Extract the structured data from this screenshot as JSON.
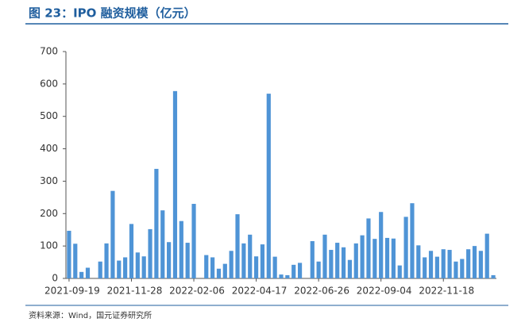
{
  "chart_data": {
    "type": "bar",
    "title": "图 23：IPO 融资规模（亿元）",
    "source": "资料来源：Wind，国元证券研究所",
    "categories": [
      "2021-09-19",
      null,
      null,
      null,
      null,
      null,
      null,
      null,
      null,
      null,
      "2021-11-28",
      null,
      null,
      null,
      null,
      null,
      null,
      null,
      null,
      null,
      "2022-02-06",
      null,
      null,
      null,
      null,
      null,
      null,
      null,
      null,
      null,
      "2022-04-17",
      null,
      null,
      null,
      null,
      null,
      null,
      null,
      null,
      null,
      "2022-06-26",
      null,
      null,
      null,
      null,
      null,
      null,
      null,
      null,
      null,
      "2022-09-04",
      null,
      null,
      null,
      null,
      null,
      null,
      null,
      null,
      null,
      "2022-11-18",
      null,
      null,
      null,
      null,
      null,
      null,
      null,
      null
    ],
    "values": [
      147,
      107,
      20,
      33,
      0,
      52,
      108,
      270,
      55,
      65,
      168,
      80,
      68,
      152,
      338,
      210,
      112,
      578,
      177,
      110,
      230,
      0,
      72,
      65,
      30,
      45,
      85,
      198,
      108,
      135,
      68,
      105,
      570,
      67,
      12,
      10,
      42,
      48,
      0,
      115,
      52,
      135,
      88,
      110,
      96,
      57,
      108,
      133,
      185,
      122,
      205,
      125,
      123,
      40,
      190,
      232,
      102,
      65,
      85,
      67,
      90,
      88,
      52,
      60,
      90,
      100,
      85,
      138,
      10
    ],
    "color": "#4f94d6",
    "ylim": [
      0,
      700
    ],
    "yticks": [
      0,
      100,
      200,
      300,
      400,
      500,
      600,
      700
    ],
    "grid": false
  }
}
